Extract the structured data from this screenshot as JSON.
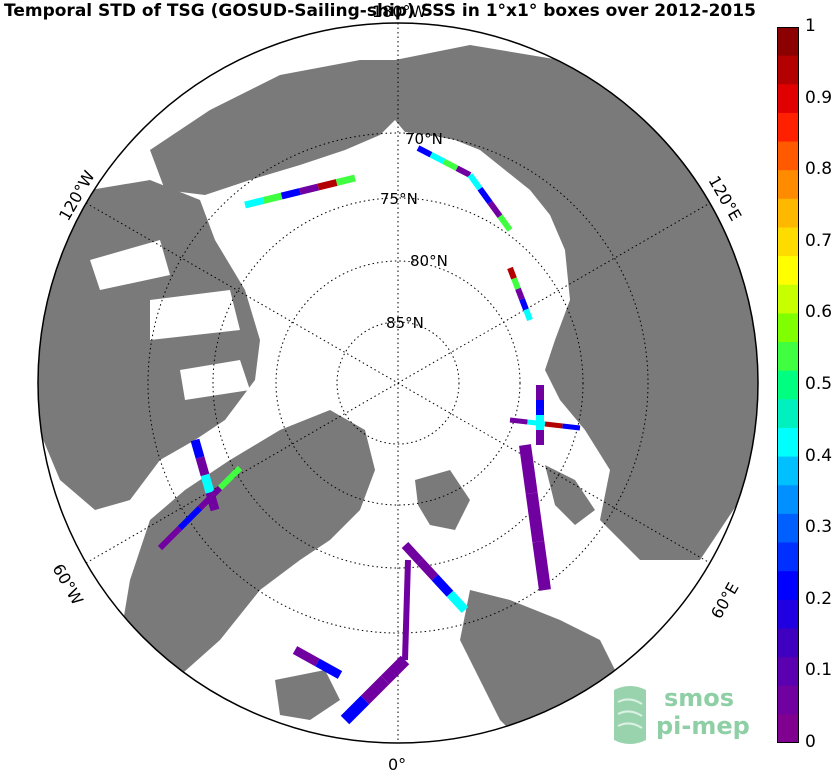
{
  "title": "Temporal STD of TSG (GOSUD-Sailing-ship) SSS in 1°x1° boxes over 2012-2015",
  "map": {
    "projection": "north-polar-stereographic",
    "lat_labels": [
      "70°N",
      "75°N",
      "80°N",
      "85°N"
    ],
    "lon_labels": {
      "top": "180°W",
      "bottom": "0°",
      "upper_left": "120°W",
      "upper_right": "120°E",
      "lower_left": "60°W",
      "lower_right": "60°E"
    },
    "land_color": "#7a7a7a",
    "ocean_color": "#ffffff"
  },
  "colorbar": {
    "ticks": [
      "1",
      "0.9",
      "0.8",
      "0.7",
      "0.6",
      "0.5",
      "0.4",
      "0.3",
      "0.2",
      "0.1",
      "0"
    ],
    "colors": [
      "#8b0000",
      "#b30000",
      "#e00000",
      "#ff2000",
      "#ff5a00",
      "#ff8c00",
      "#ffb800",
      "#ffdc00",
      "#ffff00",
      "#c8ff00",
      "#80ff00",
      "#40ff40",
      "#00ff80",
      "#00f0c0",
      "#00ffff",
      "#00c0ff",
      "#0090ff",
      "#0060ff",
      "#0030ff",
      "#0000ff",
      "#2000e0",
      "#4000c0",
      "#5a00b0",
      "#7000a0",
      "#800090"
    ],
    "vmin": 0,
    "vmax": 1
  },
  "logo": {
    "line1": "smos",
    "line2": "pi-mep"
  }
}
